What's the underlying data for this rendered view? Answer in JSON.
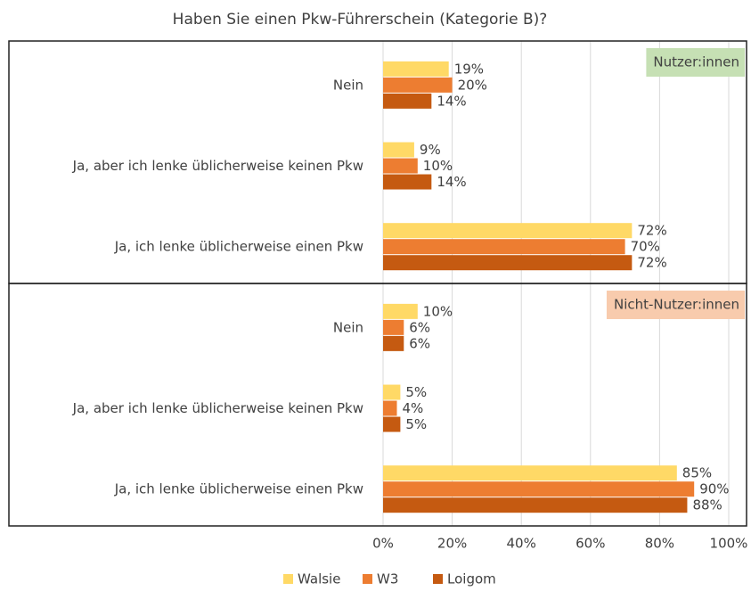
{
  "chart_data": {
    "type": "bar",
    "orientation": "horizontal",
    "title": "Haben Sie einen Pkw-Führerschein (Kategorie B)?",
    "categories": [
      "Nein",
      "Ja, aber ich lenke üblicherweise keinen Pkw",
      "Ja, ich lenke üblicherweise einen Pkw",
      "Nein",
      "Ja, aber ich lenke üblicherweise keinen Pkw",
      "Ja, ich lenke üblicherweise einen Pkw"
    ],
    "panels": [
      {
        "label": "Nutzer:innen",
        "color": "#c6e0b4"
      },
      {
        "label": "Nicht-Nutzer:innen",
        "color": "#f8cbad"
      }
    ],
    "series": [
      {
        "name": "Walsie",
        "color": "#ffd966",
        "values": [
          19,
          9,
          72,
          10,
          5,
          85
        ],
        "value_labels": [
          "19%",
          "9%",
          "72%",
          "10%",
          "5%",
          "85%"
        ]
      },
      {
        "name": "W3",
        "color": "#ed7d31",
        "values": [
          20,
          10,
          70,
          6,
          4,
          90
        ],
        "value_labels": [
          "20%",
          "10%",
          "70%",
          "6%",
          "4%",
          "90%"
        ]
      },
      {
        "name": "Loigom",
        "color": "#c55a11",
        "values": [
          14,
          14,
          72,
          6,
          5,
          88
        ],
        "value_labels": [
          "14%",
          "14%",
          "72%",
          "6%",
          "5%",
          "88%"
        ]
      }
    ],
    "xlim": [
      0,
      100
    ],
    "xticks": [
      {
        "value": 0,
        "label": "0%"
      },
      {
        "value": 20,
        "label": "20%"
      },
      {
        "value": 40,
        "label": "40%"
      },
      {
        "value": 60,
        "label": "60%"
      },
      {
        "value": 80,
        "label": "80%"
      },
      {
        "value": 100,
        "label": "100%"
      }
    ],
    "grid": true,
    "legend": "bottom"
  }
}
